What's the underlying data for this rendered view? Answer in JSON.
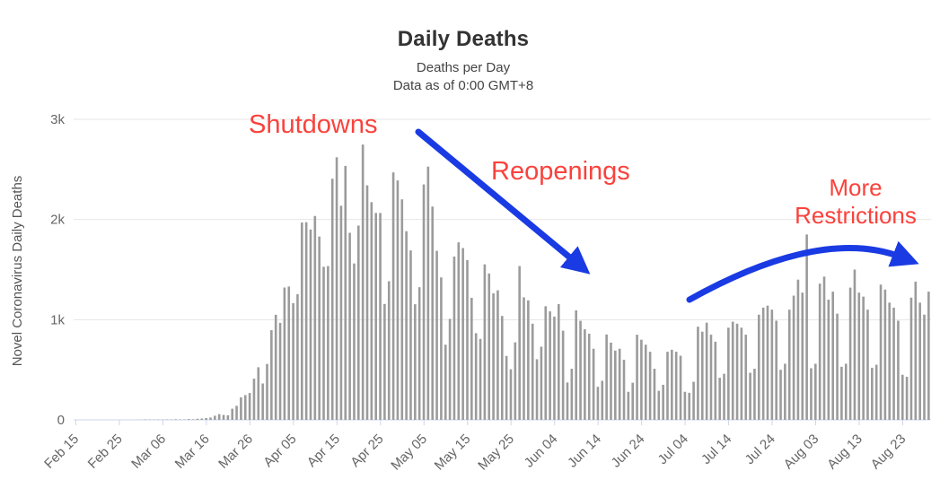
{
  "header": {
    "title": "Daily Deaths",
    "subtitle_line1": "Deaths per Day",
    "subtitle_line2": "Data as of 0:00 GMT+8"
  },
  "annotations": {
    "shutdowns": "Shutdowns",
    "reopenings": "Reopenings",
    "more_restrictions_line1": "More",
    "more_restrictions_line2": "Restrictions",
    "text_color": "#fa423c",
    "arrow_color": "#1a3be3"
  },
  "chart_data": {
    "type": "bar",
    "title": "Daily Deaths",
    "subtitle": [
      "Deaths per Day",
      "Data as of 0:00 GMT+8"
    ],
    "xlabel": "",
    "ylabel": "Novel Coronavirus Daily Deaths",
    "ylim": [
      0,
      3000
    ],
    "grid": "horizontal",
    "legend": "none",
    "bar_color": "#9b9b9b",
    "grid_color": "#e6e6e6",
    "axis_line_color": "#ccd6eb",
    "axis_text_color": "#666666",
    "frequency": "daily",
    "start_date": "Feb 15",
    "end_date": "Aug 29",
    "y_ticks": [
      {
        "value": 0,
        "label": "0"
      },
      {
        "value": 1000,
        "label": "1k"
      },
      {
        "value": 2000,
        "label": "2k"
      },
      {
        "value": 3000,
        "label": "3k"
      }
    ],
    "x_tick_day_indices": [
      0,
      10,
      20,
      30,
      40,
      50,
      60,
      70,
      80,
      90,
      100,
      110,
      120,
      130,
      140,
      150,
      160,
      170,
      180,
      190
    ],
    "x_tick_labels": [
      "Feb 15",
      "Feb 25",
      "Mar 06",
      "Mar 16",
      "Mar 26",
      "Apr 05",
      "Apr 15",
      "Apr 25",
      "May 05",
      "May 15",
      "May 25",
      "Jun 04",
      "Jun 14",
      "Jun 24",
      "Jul 04",
      "Jul 14",
      "Jul 24",
      "Aug 03",
      "Aug 13",
      "Aug 23"
    ],
    "values": [
      0,
      0,
      0,
      0,
      0,
      0,
      0,
      0,
      0,
      0,
      0,
      0,
      0,
      0,
      1,
      1,
      4,
      3,
      2,
      3,
      3,
      4,
      3,
      6,
      4,
      4,
      8,
      6,
      11,
      13,
      18,
      23,
      41,
      57,
      49,
      46,
      111,
      140,
      225,
      247,
      268,
      411,
      525,
      363,
      558,
      895,
      1049,
      968,
      1321,
      1331,
      1165,
      1255,
      1970,
      1973,
      1900,
      2035,
      1830,
      1528,
      1535,
      2407,
      2621,
      2137,
      2535,
      1867,
      1561,
      1939,
      2748,
      2341,
      2173,
      2065,
      2065,
      1157,
      1384,
      2470,
      2390,
      2201,
      1883,
      1691,
      1154,
      1324,
      2350,
      2528,
      2129,
      1687,
      1422,
      750,
      1008,
      1630,
      1772,
      1715,
      1595,
      1218,
      865,
      808,
      1552,
      1461,
      1263,
      1293,
      1037,
      638,
      505,
      774,
      1535,
      1223,
      1193,
      960,
      605,
      730,
      1134,
      1083,
      1031,
      1155,
      890,
      373,
      510,
      1093,
      989,
      904,
      860,
      710,
      330,
      390,
      852,
      771,
      691,
      710,
      600,
      280,
      370,
      850,
      800,
      750,
      680,
      510,
      290,
      350,
      680,
      700,
      680,
      640,
      280,
      270,
      380,
      930,
      880,
      970,
      850,
      780,
      420,
      460,
      920,
      980,
      960,
      920,
      850,
      470,
      510,
      1050,
      1120,
      1140,
      1100,
      990,
      500,
      560,
      1100,
      1240,
      1400,
      1270,
      1850,
      515,
      560,
      1360,
      1430,
      1200,
      1280,
      1060,
      530,
      560,
      1320,
      1500,
      1270,
      1230,
      1100,
      520,
      550,
      1350,
      1300,
      1170,
      1120,
      990,
      450,
      430,
      1220,
      1380,
      1170,
      1050,
      1280
    ]
  }
}
